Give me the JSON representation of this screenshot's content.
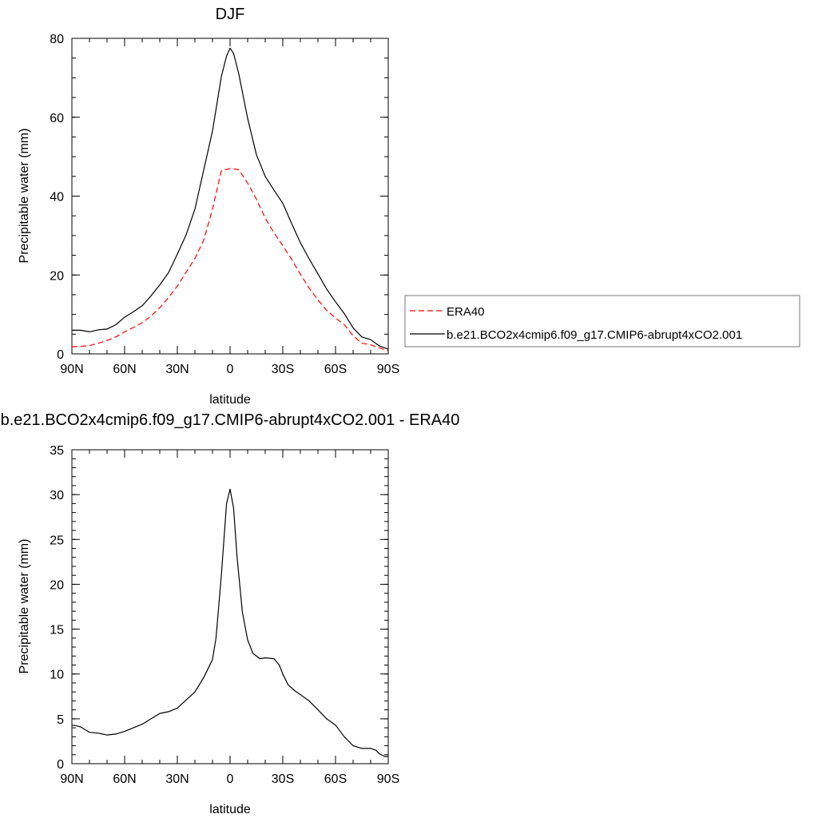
{
  "chart_data": [
    {
      "type": "line",
      "title": "DJF",
      "xlabel": "latitude",
      "ylabel": "Precipitable water (mm)",
      "xlim": [
        -90,
        90
      ],
      "ylim": [
        0,
        80
      ],
      "x_ticks": [
        -90,
        -60,
        -30,
        0,
        30,
        60,
        90
      ],
      "x_tick_labels": [
        "90N",
        "60N",
        "30N",
        "0",
        "30S",
        "60S",
        "90S"
      ],
      "y_ticks": [
        0,
        20,
        40,
        60,
        80
      ],
      "y_tick_labels": [
        "0",
        "20",
        "40",
        "60",
        "80"
      ],
      "legend_placement": "right-middle",
      "series": [
        {
          "name": "ERA40",
          "color": "#ff0000",
          "dash": "dashed",
          "x": [
            -90,
            -85,
            -80,
            -75,
            -70,
            -65,
            -60,
            -55,
            -50,
            -45,
            -40,
            -35,
            -30,
            -25,
            -20,
            -15,
            -10,
            -5,
            0,
            5,
            10,
            15,
            20,
            25,
            30,
            35,
            40,
            45,
            50,
            55,
            60,
            65,
            70,
            75,
            80,
            85,
            90
          ],
          "values": [
            1.8,
            1.9,
            2.1,
            2.7,
            3.4,
            4.3,
            5.6,
            6.7,
            7.9,
            9.6,
            11.7,
            14.3,
            17.2,
            20.7,
            24.2,
            28.8,
            36.7,
            46.4,
            47,
            46.7,
            43.3,
            39.2,
            34.4,
            30.7,
            27.4,
            24,
            20.2,
            16.7,
            13.7,
            11,
            9.1,
            7.4,
            4.6,
            2.7,
            2.3,
            1.5,
            0.8
          ]
        },
        {
          "name": "b.e21.BCO2x4cmip6.f09_g17.CMIP6-abrupt4xCO2.001",
          "color": "#000000",
          "dash": "solid",
          "x": [
            -90,
            -85,
            -80,
            -75,
            -70,
            -65,
            -60,
            -55,
            -50,
            -45,
            -40,
            -35,
            -30,
            -25,
            -20,
            -15,
            -10,
            -5,
            -2,
            0,
            2,
            5,
            10,
            15,
            20,
            25,
            30,
            35,
            40,
            45,
            50,
            55,
            60,
            65,
            70,
            75,
            80,
            85,
            90
          ],
          "values": [
            6,
            6,
            5.6,
            6.1,
            6.3,
            7.4,
            9.3,
            10.7,
            12.2,
            14.7,
            17.5,
            20.6,
            25.3,
            30.2,
            36.7,
            46.6,
            56.5,
            70.2,
            75.5,
            77.5,
            76.2,
            70.9,
            59.7,
            50.5,
            45,
            41.5,
            38.2,
            33.1,
            28.2,
            24.1,
            20.3,
            16.4,
            13.2,
            10.2,
            6.6,
            4.3,
            3.6,
            2,
            1.2
          ]
        }
      ]
    },
    {
      "type": "line",
      "title": "b.e21.BCO2x4cmip6.f09_g17.CMIP6-abrupt4xCO2.001 - ERA40",
      "xlabel": "latitude",
      "ylabel": "Precipitable water (mm)",
      "xlim": [
        -90,
        90
      ],
      "ylim": [
        0,
        35
      ],
      "x_ticks": [
        -90,
        -60,
        -30,
        0,
        30,
        60,
        90
      ],
      "x_tick_labels": [
        "90N",
        "60N",
        "30N",
        "0",
        "30S",
        "60S",
        "90S"
      ],
      "y_ticks": [
        0,
        5,
        10,
        15,
        20,
        25,
        30,
        35
      ],
      "y_tick_labels": [
        "0",
        "5",
        "10",
        "15",
        "20",
        "25",
        "30",
        "35"
      ],
      "series": [
        {
          "color": "#000000",
          "dash": "solid",
          "x": [
            -90,
            -87,
            -85,
            -80,
            -75,
            -70,
            -65,
            -60,
            -55,
            -50,
            -45,
            -40,
            -35,
            -30,
            -25,
            -20,
            -15,
            -10,
            -8,
            -5,
            -2,
            0,
            2,
            4,
            7,
            10,
            13,
            17,
            20,
            25,
            28,
            30,
            33,
            37,
            40,
            45,
            50,
            55,
            60,
            65,
            70,
            75,
            80,
            83,
            85,
            88,
            90
          ],
          "values": [
            4.3,
            4.2,
            4.1,
            3.5,
            3.4,
            3.2,
            3.3,
            3.6,
            4,
            4.4,
            5,
            5.6,
            5.8,
            6.2,
            7.1,
            8,
            9.6,
            11.6,
            14,
            20.9,
            29,
            30.6,
            28.5,
            23,
            16.9,
            13.8,
            12.3,
            11.7,
            11.8,
            11.7,
            11,
            10,
            8.8,
            8.1,
            7.7,
            7,
            6,
            5,
            4.3,
            3,
            2,
            1.7,
            1.7,
            1.5,
            1.1,
            0.8,
            0.8
          ]
        }
      ]
    }
  ]
}
